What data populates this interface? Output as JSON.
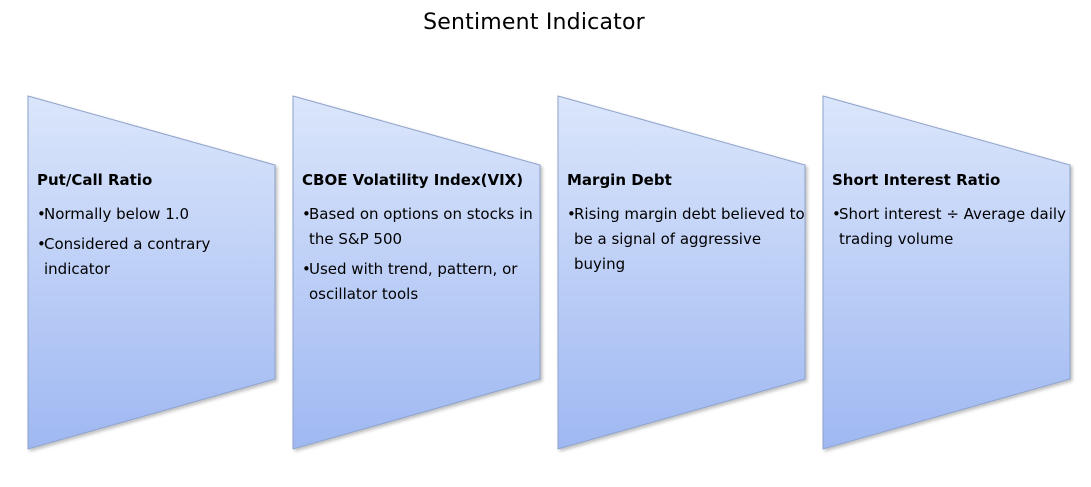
{
  "title": "Sentiment Indicator",
  "colors": {
    "fill_top": "#dbe6fb",
    "fill_bottom": "#9fb8f2",
    "stroke": "#8fa3cc"
  },
  "bullet_char": "•",
  "panels": [
    {
      "heading": "Put/Call Ratio",
      "bullets": [
        "Normally below 1.0",
        "Considered a contrary indicator"
      ]
    },
    {
      "heading": "CBOE Volatility Index(VIX)",
      "bullets": [
        "Based on options on stocks in the S&P 500",
        "Used with trend, pattern, or oscillator tools"
      ]
    },
    {
      "heading": "Margin Debt",
      "bullets": [
        "Rising margin debt believed to be a signal of aggressive buying"
      ]
    },
    {
      "heading": "Short Interest Ratio",
      "bullets": [
        "Short interest ÷ Average daily trading volume"
      ]
    }
  ]
}
